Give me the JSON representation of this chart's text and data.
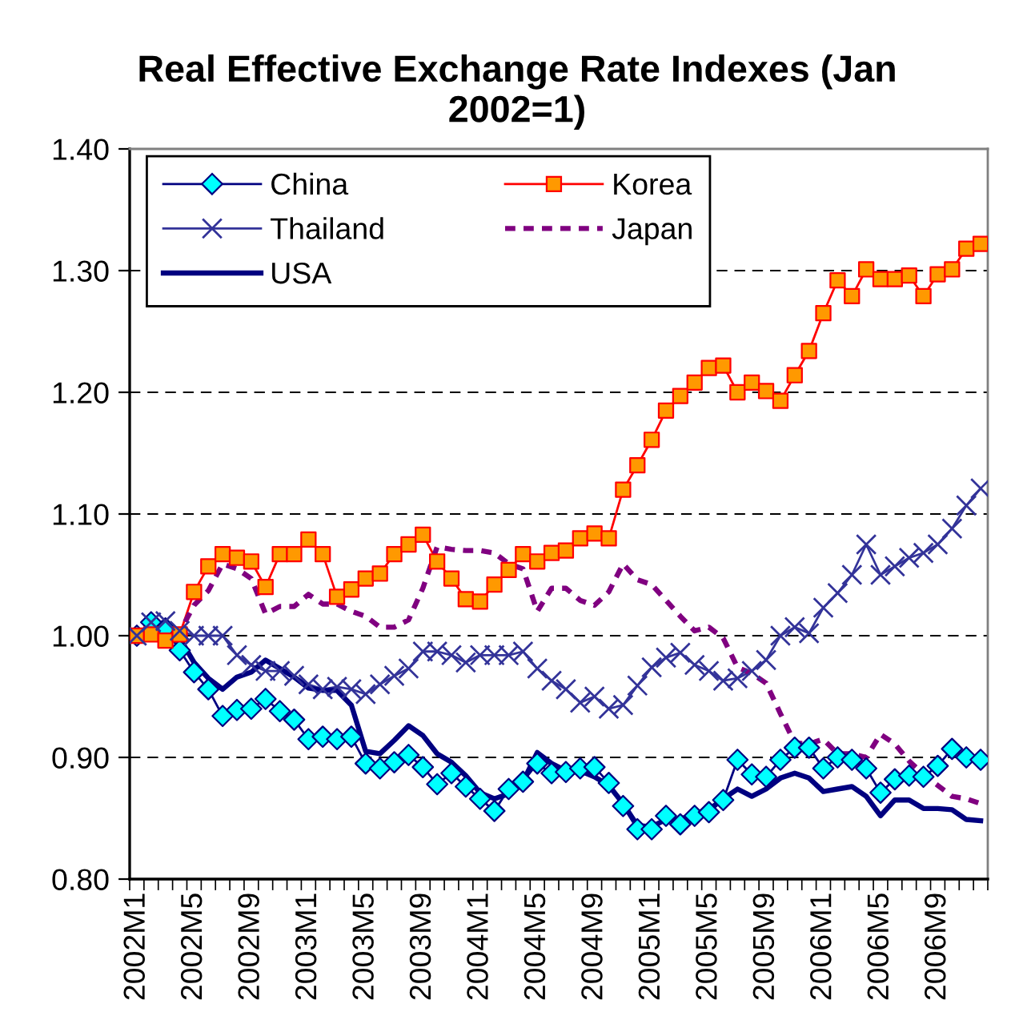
{
  "chart_data": {
    "type": "line",
    "title": "Real Effective Exchange Rate Indexes (Jan 2002=1)",
    "categories": [
      "2002M1",
      null,
      null,
      null,
      "2002M5",
      null,
      null,
      null,
      "2002M9",
      null,
      null,
      null,
      "2003M1",
      null,
      null,
      null,
      "2003M5",
      null,
      null,
      null,
      "2003M9",
      null,
      null,
      null,
      "2004M1",
      null,
      null,
      null,
      "2004M5",
      null,
      null,
      null,
      "2004M9",
      null,
      null,
      null,
      "2005M1",
      null,
      null,
      null,
      "2005M5",
      null,
      null,
      null,
      "2005M9",
      null,
      null,
      null,
      "2006M1",
      null,
      null,
      null,
      "2006M5",
      null,
      null,
      null,
      "2006M9",
      null,
      null,
      null
    ],
    "ylim": [
      0.8,
      1.4
    ],
    "yticks": [
      {
        "value": 0.8,
        "label": "0.80"
      },
      {
        "value": 0.9,
        "label": "0.90"
      },
      {
        "value": 1.0,
        "label": "1.00"
      },
      {
        "value": 1.1,
        "label": "1.10"
      },
      {
        "value": 1.2,
        "label": "1.20"
      },
      {
        "value": 1.3,
        "label": "1.30"
      },
      {
        "value": 1.4,
        "label": "1.40"
      }
    ],
    "grid": "y",
    "legend": "top left",
    "series": [
      {
        "name": "China",
        "color": "#000080",
        "marker": "diamond",
        "line_style": "solid",
        "values": [
          1.0,
          1.011,
          1.006,
          0.988,
          0.97,
          0.956,
          0.934,
          0.939,
          0.94,
          0.948,
          0.938,
          0.931,
          0.915,
          0.917,
          0.915,
          0.917,
          0.895,
          0.891,
          0.896,
          0.902,
          0.892,
          0.878,
          0.887,
          0.876,
          0.866,
          0.856,
          0.874,
          0.88,
          0.895,
          0.887,
          0.888,
          0.891,
          0.892,
          0.879,
          0.86,
          0.841,
          0.841,
          0.852,
          0.845,
          0.852,
          0.855,
          0.865,
          0.898,
          0.886,
          0.884,
          0.898,
          0.908,
          0.908,
          0.891,
          0.9,
          0.898,
          0.891,
          0.871,
          0.882,
          0.885,
          0.884,
          0.893,
          0.907,
          0.9,
          0.898
        ],
        "colors": [
          "#00ffff",
          "#00ffff",
          "#00ffff",
          "#00ffff",
          "#00ffff",
          "#00ffff",
          "#00ffff",
          "#00ffff",
          "#00ffff",
          "#00ffff",
          "#00ffff",
          "#00ffff",
          "#00ffff",
          "#00ffff",
          "#00ffff",
          "#00ffff",
          "#00ffff",
          "#00ffff",
          "#00ffff",
          "#00ffff",
          "#00ffff",
          "#00ffff",
          "#00ffff",
          "#00ffff",
          "#00ffff",
          "#00ffff",
          "#00ffff",
          "#00ffff",
          "#00ffff",
          "#00ffff",
          "#00ffff",
          "#00ffff",
          "#00ffff",
          "#00ffff",
          "#00ffff",
          "#00ffff",
          "#00ffff",
          "#00ffff",
          "#00ffff",
          "#00ffff",
          "#00ffff",
          "#00ffff",
          "#00ffff",
          "#00ffff",
          "#00ffff",
          "#00ffff",
          "#00ffff",
          "#00ffff",
          "#00ffff",
          "#00ffff",
          "#00ffff",
          "#00ffff",
          "#00ffff",
          "#00ffff",
          "#00ffff",
          "#00ffff",
          "#00ffff",
          "#00ffff",
          "#00ffff",
          "#00ffff"
        ]
      },
      {
        "name": "Korea",
        "color": "#ff0000",
        "marker": "square",
        "line_style": "solid",
        "values": [
          1.0,
          1.001,
          0.996,
          1.001,
          1.036,
          1.057,
          1.067,
          1.064,
          1.061,
          1.04,
          1.067,
          1.067,
          1.079,
          1.067,
          1.032,
          1.038,
          1.047,
          1.051,
          1.067,
          1.075,
          1.083,
          1.061,
          1.047,
          1.03,
          1.028,
          1.042,
          1.054,
          1.067,
          1.061,
          1.068,
          1.07,
          1.08,
          1.084,
          1.08,
          1.12,
          1.14,
          1.161,
          1.185,
          1.197,
          1.208,
          1.22,
          1.222,
          1.2,
          1.208,
          1.201,
          1.193,
          1.214,
          1.234,
          1.265,
          1.292,
          1.279,
          1.301,
          1.293,
          1.293,
          1.296,
          1.279,
          1.297,
          1.301,
          1.318,
          1.322
        ],
        "colors": [
          "#ff9900",
          "#ff9900",
          "#ff9900",
          "#ff9900",
          "#ff9900",
          "#ff9900",
          "#ff9900",
          "#ff9900",
          "#ff9900",
          "#ff9900",
          "#ff9900",
          "#ff9900",
          "#ff9900",
          "#ff9900",
          "#ff9900",
          "#ff9900",
          "#ff9900",
          "#ff9900",
          "#ff9900",
          "#ff9900",
          "#ff9900",
          "#ff9900",
          "#ff9900",
          "#ff9900",
          "#ff9900",
          "#ff9900",
          "#ff9900",
          "#ff9900",
          "#ff9900",
          "#ff9900",
          "#ff9900",
          "#ff9900",
          "#ff9900",
          "#ff9900",
          "#ff9900",
          "#ff9900",
          "#ff9900",
          "#ff9900",
          "#ff9900",
          "#ff9900",
          "#ff9900",
          "#ff9900",
          "#ff9900",
          "#ff9900",
          "#ff9900",
          "#ff9900",
          "#ff9900",
          "#ff9900",
          "#ff9900",
          "#ff9900",
          "#ff9900",
          "#ff9900",
          "#ff9900",
          "#ff9900",
          "#ff9900",
          "#ff9900",
          "#ff9900",
          "#ff9900",
          "#ff9900",
          "#ff9900"
        ]
      },
      {
        "name": "Thailand",
        "color": "#333399",
        "marker": "cross",
        "line_style": "solid",
        "values": [
          1.0,
          1.011,
          1.012,
          1.004,
          1.0,
          1.0,
          1.0,
          0.984,
          0.976,
          0.971,
          0.971,
          0.967,
          0.96,
          0.956,
          0.958,
          0.956,
          0.952,
          0.96,
          0.967,
          0.973,
          0.987,
          0.987,
          0.984,
          0.978,
          0.984,
          0.984,
          0.984,
          0.987,
          0.973,
          0.963,
          0.956,
          0.945,
          0.95,
          0.94,
          0.943,
          0.959,
          0.974,
          0.982,
          0.986,
          0.976,
          0.971,
          0.963,
          0.965,
          0.971,
          0.98,
          1.0,
          1.007,
          1.002,
          1.023,
          1.035,
          1.05,
          1.075,
          1.05,
          1.057,
          1.064,
          1.068,
          1.075,
          1.088,
          1.107,
          1.121
        ]
      },
      {
        "name": "Japan",
        "color": "#800080",
        "marker": "none",
        "line_style": "dashed",
        "values": [
          1.0,
          0.998,
          1.0,
          1.003,
          1.025,
          1.037,
          1.059,
          1.055,
          1.047,
          1.018,
          1.024,
          1.024,
          1.034,
          1.026,
          1.026,
          1.02,
          1.016,
          1.007,
          1.007,
          1.013,
          1.039,
          1.073,
          1.071,
          1.07,
          1.07,
          1.068,
          1.059,
          1.055,
          1.02,
          1.039,
          1.039,
          1.029,
          1.025,
          1.036,
          1.059,
          1.046,
          1.042,
          1.029,
          1.016,
          1.004,
          1.007,
          0.998,
          0.974,
          0.969,
          0.961,
          0.936,
          0.912,
          0.911,
          0.915,
          0.903,
          0.903,
          0.9,
          0.919,
          0.911,
          0.897,
          0.886,
          0.877,
          0.868,
          0.866,
          0.862
        ]
      },
      {
        "name": "USA",
        "color": "#000080",
        "marker": "none",
        "line_style": "solid",
        "values": [
          1.0,
          1.004,
          1.004,
          0.998,
          0.978,
          0.965,
          0.956,
          0.966,
          0.97,
          0.98,
          0.973,
          0.966,
          0.957,
          0.955,
          0.955,
          0.943,
          0.905,
          0.903,
          0.914,
          0.926,
          0.918,
          0.903,
          0.896,
          0.885,
          0.871,
          0.866,
          0.87,
          0.88,
          0.904,
          0.895,
          0.889,
          0.889,
          0.884,
          0.877,
          0.862,
          0.844,
          0.843,
          0.849,
          0.849,
          0.854,
          0.857,
          0.866,
          0.874,
          0.868,
          0.874,
          0.883,
          0.887,
          0.883,
          0.872,
          0.874,
          0.876,
          0.868,
          0.852,
          0.865,
          0.865,
          0.858,
          0.858,
          0.857,
          0.849,
          0.848
        ]
      }
    ]
  }
}
